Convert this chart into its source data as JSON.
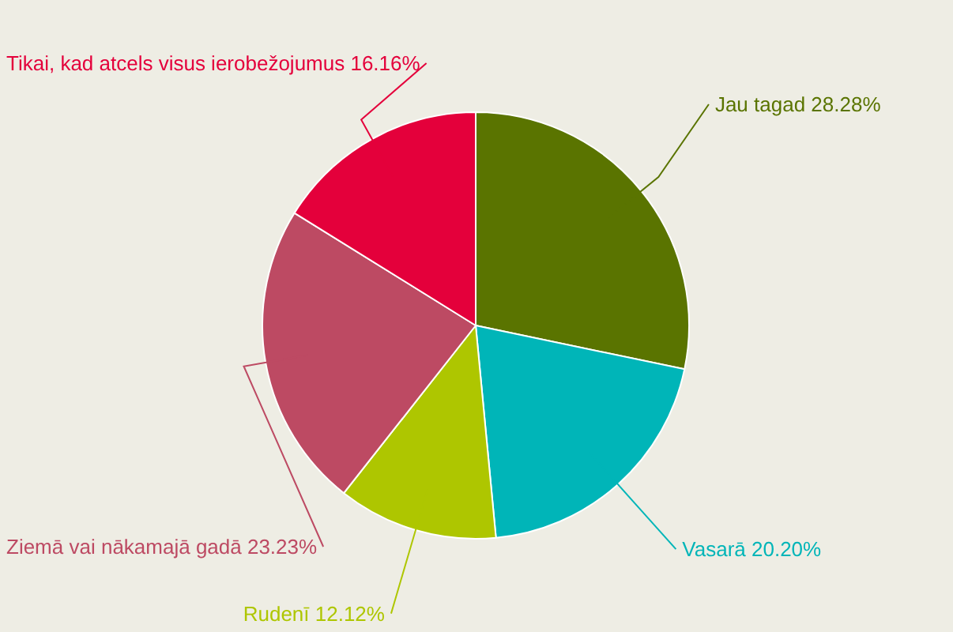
{
  "chart_data": {
    "type": "pie",
    "categories": [
      "Jau tagad",
      "Vasarā",
      "Rudenī",
      "Ziemā vai nākamajā gadā",
      "Tikai, kad atcels visus ierobežojumus"
    ],
    "values": [
      28.28,
      20.2,
      12.12,
      23.23,
      16.16
    ],
    "value_labels": [
      "28.28%",
      "20.20%",
      "12.12%",
      "23.23%",
      "16.16%"
    ],
    "colors": [
      "#5a7400",
      "#00b5b8",
      "#aec600",
      "#bd4a63",
      "#e4003b"
    ]
  }
}
